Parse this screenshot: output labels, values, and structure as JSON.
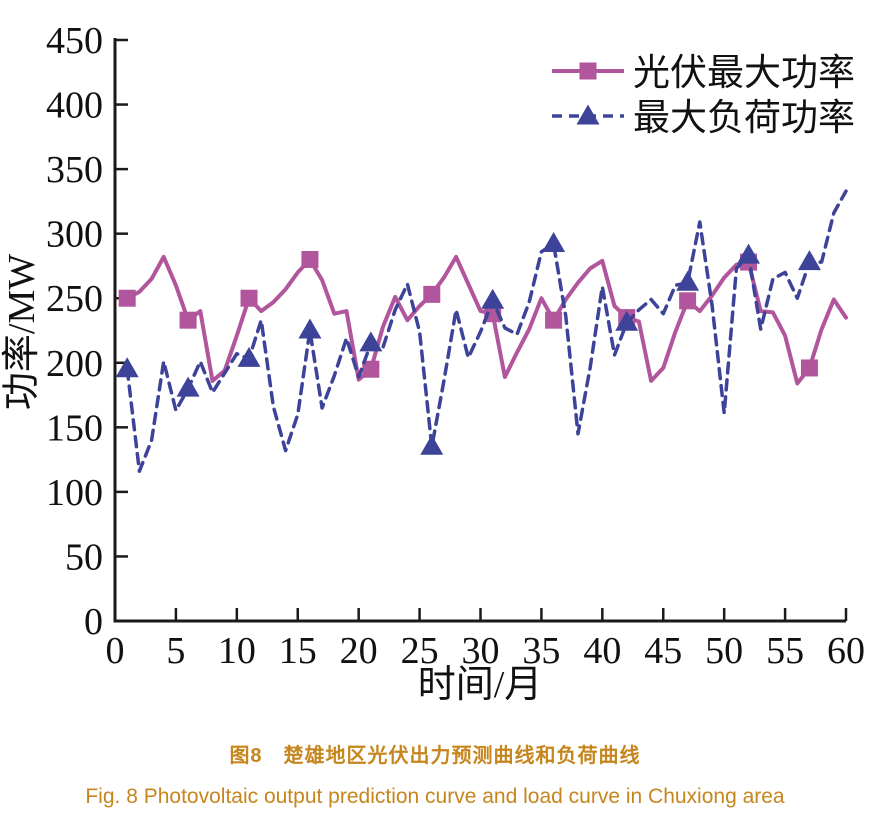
{
  "figure": {
    "caption_zh": "图8　楚雄地区光伏出力预测曲线和负荷曲线",
    "caption_en": "Fig. 8   Photovoltaic output prediction curve and load curve in Chuxiong area",
    "caption_color": "#c6861d"
  },
  "chart_data": {
    "type": "line",
    "title": "",
    "xlabel": "时间/月",
    "ylabel": "功率/MW",
    "xlim": [
      0,
      60
    ],
    "ylim": [
      0,
      450
    ],
    "x_ticks": [
      0,
      5,
      10,
      15,
      20,
      25,
      30,
      35,
      40,
      45,
      50,
      55,
      60
    ],
    "y_ticks": [
      0,
      50,
      100,
      150,
      200,
      250,
      300,
      350,
      400,
      450
    ],
    "grid": false,
    "legend_position": "top-right-inside",
    "months": 60,
    "axis_color": "#1a1a1a",
    "series": [
      {
        "id": "pv",
        "name": "光伏最大功率",
        "color": "#b1569c",
        "style": "solid",
        "marker": "square",
        "marker_months": [
          1,
          6,
          11,
          16,
          21,
          26,
          31,
          36,
          42,
          47,
          52,
          57
        ],
        "values": [
          250,
          255,
          265,
          282,
          260,
          233,
          240,
          186,
          194,
          221,
          250,
          240,
          247,
          257,
          270,
          280,
          264,
          238,
          240,
          187,
          195,
          228,
          251,
          233,
          244,
          253,
          266,
          282,
          261,
          240,
          238,
          189,
          208,
          226,
          250,
          233,
          249,
          262,
          273,
          279,
          244,
          235,
          232,
          186,
          196,
          224,
          248,
          240,
          252,
          266,
          276,
          278,
          240,
          239,
          221,
          184,
          196,
          226,
          249,
          235
        ]
      },
      {
        "id": "load",
        "name": "最大负荷功率",
        "color": "#3c4398",
        "style": "dashed",
        "marker": "triangle",
        "marker_months": [
          1,
          6,
          11,
          16,
          21,
          26,
          31,
          36,
          42,
          47,
          52,
          57
        ],
        "values": [
          195,
          116,
          140,
          201,
          163,
          180,
          201,
          177,
          192,
          207,
          203,
          233,
          166,
          132,
          160,
          225,
          165,
          190,
          219,
          189,
          215,
          212,
          241,
          261,
          224,
          135,
          186,
          241,
          204,
          224,
          248,
          227,
          222,
          247,
          286,
          292,
          236,
          145,
          196,
          259,
          206,
          231,
          241,
          249,
          238,
          260,
          262,
          309,
          245,
          161,
          273,
          283,
          226,
          265,
          270,
          250,
          278,
          278,
          316,
          333
        ]
      }
    ]
  }
}
